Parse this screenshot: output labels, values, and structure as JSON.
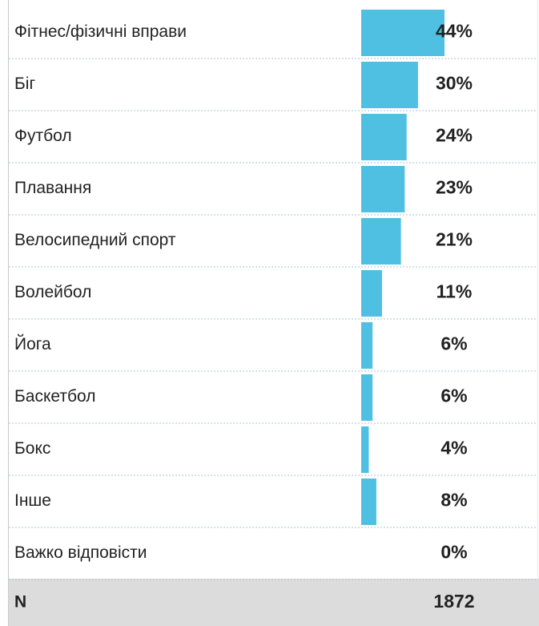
{
  "chart_data": {
    "type": "bar",
    "orientation": "horizontal",
    "color": "#4fc0e2",
    "categories": [
      "Фітнес/фізичні вправи",
      "Біг",
      "Футбол",
      "Плавання",
      "Велосипедний спорт",
      "Волейбол",
      "Йога",
      "Баскетбол",
      "Бокс",
      "Інше",
      "Важко відповісти"
    ],
    "values": [
      44,
      30,
      24,
      23,
      21,
      11,
      6,
      6,
      4,
      8,
      0
    ],
    "value_labels": [
      "44%",
      "30%",
      "24%",
      "23%",
      "21%",
      "11%",
      "6%",
      "6%",
      "4%",
      "8%",
      "0%"
    ]
  },
  "footer": {
    "label": "N",
    "value": 1872
  }
}
